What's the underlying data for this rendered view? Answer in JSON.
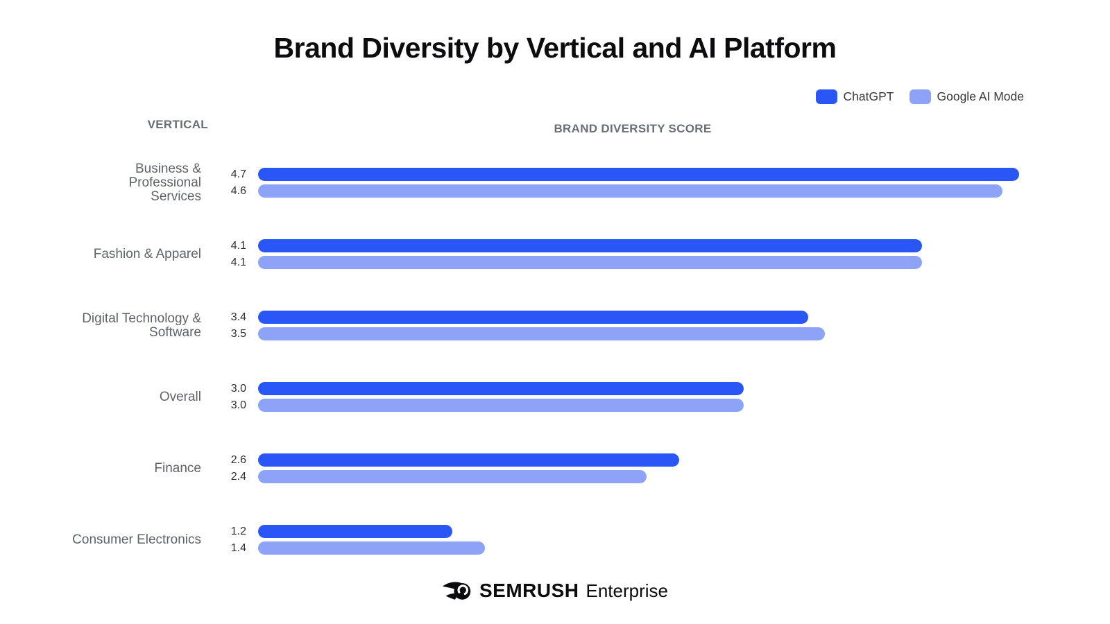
{
  "title": "Brand Diversity by Vertical and AI Platform",
  "legend": {
    "series": [
      {
        "label": "ChatGPT",
        "color": "#2B56F6"
      },
      {
        "label": "Google AI Mode",
        "color": "#8DA3F8"
      }
    ]
  },
  "headers": {
    "vertical": "VERTICAL",
    "score": "BRAND DIVERSITY SCORE"
  },
  "rows": [
    {
      "category": "Business &\nProfessional\nServices",
      "chatgpt": "4.7",
      "google": "4.6"
    },
    {
      "category": "Fashion & Apparel",
      "chatgpt": "4.1",
      "google": "4.1"
    },
    {
      "category": "Digital Technology &\nSoftware",
      "chatgpt": "3.4",
      "google": "3.5"
    },
    {
      "category": "Overall",
      "chatgpt": "3.0",
      "google": "3.0"
    },
    {
      "category": "Finance",
      "chatgpt": "2.6",
      "google": "2.4"
    },
    {
      "category": "Consumer Electronics",
      "chatgpt": "1.2",
      "google": "1.4"
    }
  ],
  "footer": {
    "brand": "SEMRUSH",
    "suffix": "Enterprise",
    "logo_icon": "semrush-fireball-icon"
  },
  "chart_data": {
    "type": "bar",
    "orientation": "horizontal",
    "title": "Brand Diversity by Vertical and AI Platform",
    "xlabel": "BRAND DIVERSITY SCORE",
    "ylabel": "VERTICAL",
    "xlim": [
      0,
      4.8
    ],
    "grid": false,
    "legend_position": "top-right",
    "categories": [
      "Business & Professional Services",
      "Fashion & Apparel",
      "Digital Technology & Software",
      "Overall",
      "Finance",
      "Consumer Electronics"
    ],
    "series": [
      {
        "name": "ChatGPT",
        "color": "#2B56F6",
        "values": [
          4.7,
          4.1,
          3.4,
          3.0,
          2.6,
          1.2
        ]
      },
      {
        "name": "Google AI Mode",
        "color": "#8DA3F8",
        "values": [
          4.6,
          4.1,
          3.5,
          3.0,
          2.4,
          1.4
        ]
      }
    ]
  }
}
